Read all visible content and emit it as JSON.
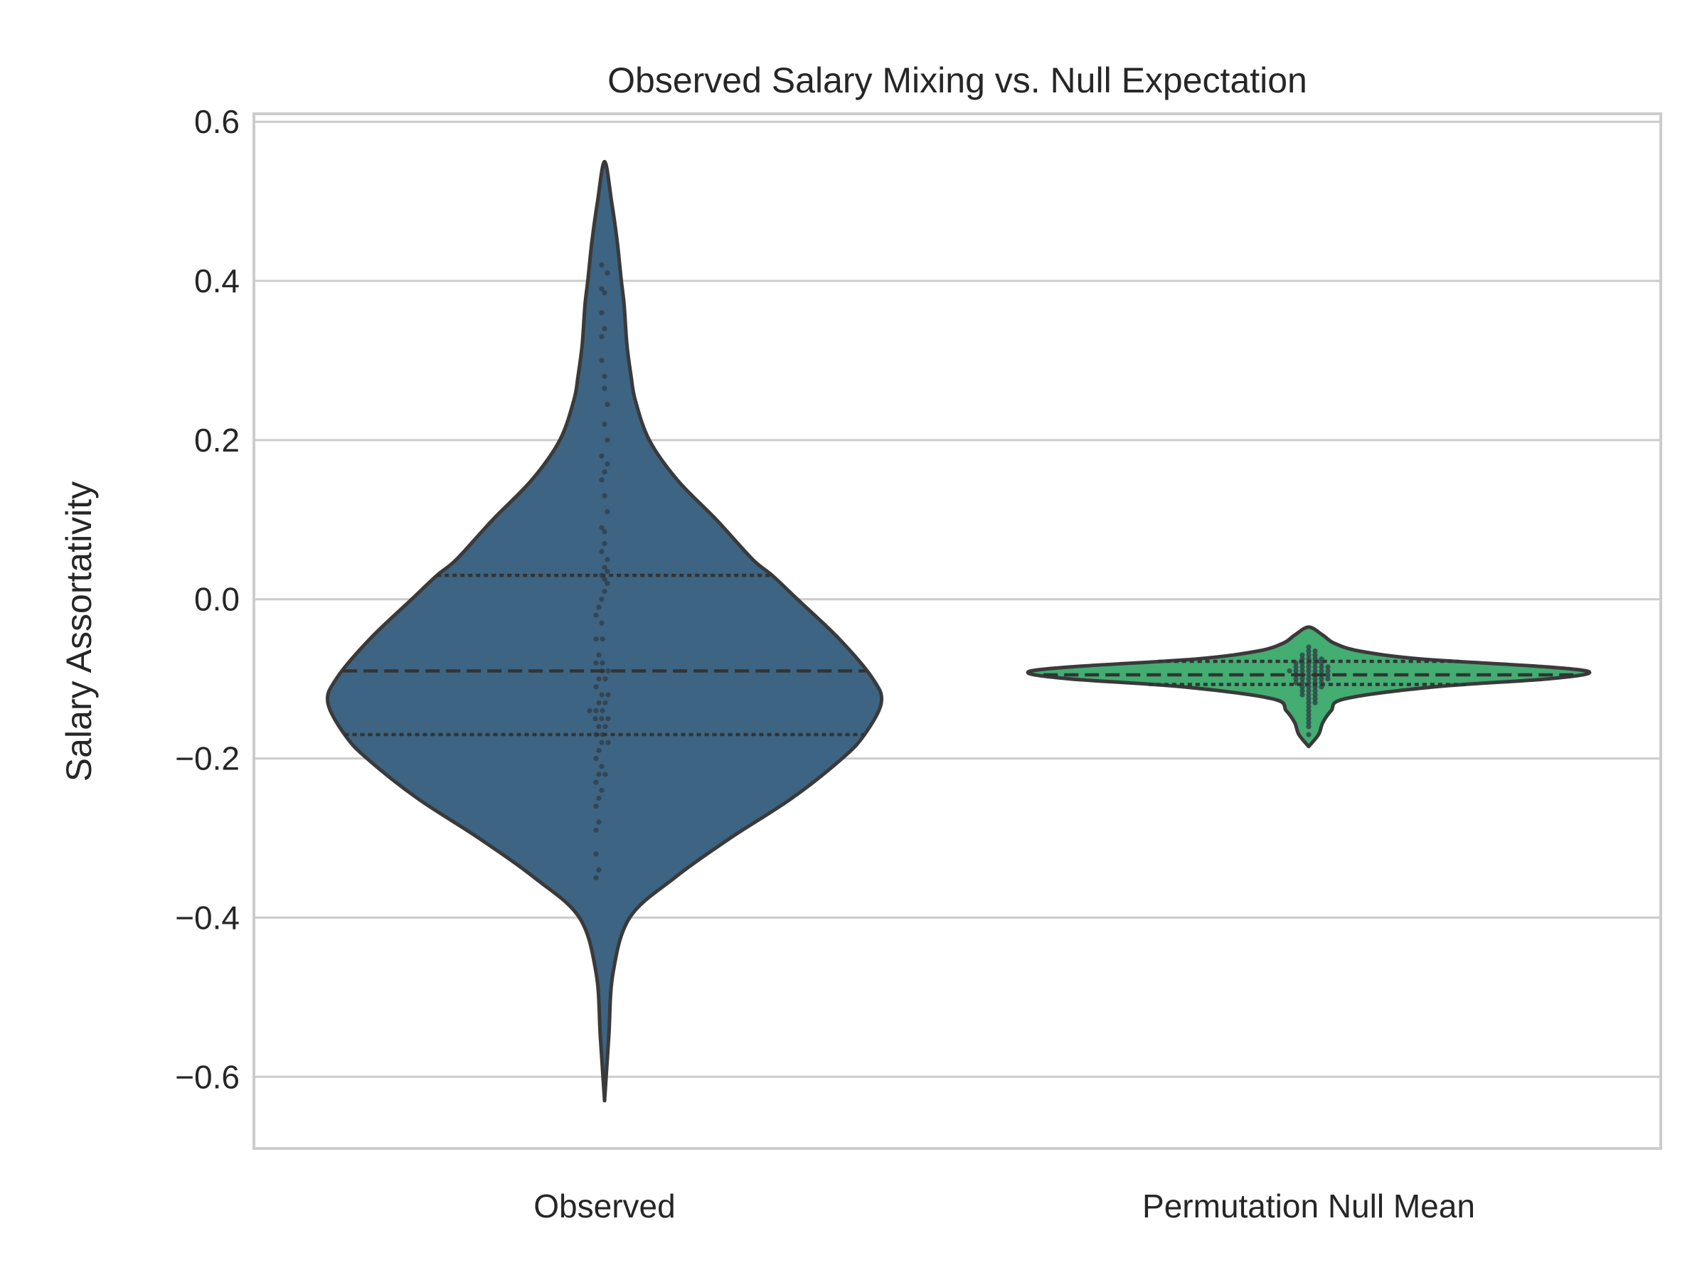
{
  "chart_data": {
    "type": "violin",
    "title": "Observed Salary Mixing vs. Null Expectation",
    "xlabel": "",
    "ylabel": "Salary Assortativity",
    "ylim": [
      -0.69,
      0.61
    ],
    "yticks": [
      0.6,
      0.4,
      0.2,
      0.0,
      -0.2,
      -0.4,
      -0.6
    ],
    "ytick_labels": [
      "0.6",
      "0.4",
      "0.2",
      "0.0",
      "−0.2",
      "−0.4",
      "−0.6"
    ],
    "grid": true,
    "categories": [
      "Observed",
      "Permutation Null Mean"
    ],
    "colors": [
      "#3d6482",
      "#43ad72"
    ],
    "series": [
      {
        "category": "Observed",
        "min": -0.63,
        "max": 0.55,
        "q1": -0.17,
        "median": -0.09,
        "q3": 0.03,
        "density": [
          [
            -0.63,
            0.0
          ],
          [
            -0.55,
            0.015
          ],
          [
            -0.47,
            0.03
          ],
          [
            -0.4,
            0.09
          ],
          [
            -0.35,
            0.25
          ],
          [
            -0.3,
            0.45
          ],
          [
            -0.25,
            0.67
          ],
          [
            -0.2,
            0.85
          ],
          [
            -0.17,
            0.93
          ],
          [
            -0.13,
            0.99
          ],
          [
            -0.1,
            0.96
          ],
          [
            -0.05,
            0.84
          ],
          [
            0.0,
            0.69
          ],
          [
            0.03,
            0.6
          ],
          [
            0.05,
            0.53
          ],
          [
            0.1,
            0.4
          ],
          [
            0.15,
            0.26
          ],
          [
            0.2,
            0.16
          ],
          [
            0.25,
            0.11
          ],
          [
            0.28,
            0.095
          ],
          [
            0.32,
            0.08
          ],
          [
            0.37,
            0.07
          ],
          [
            0.4,
            0.06
          ],
          [
            0.45,
            0.045
          ],
          [
            0.5,
            0.025
          ],
          [
            0.55,
            0.0
          ]
        ],
        "points": [
          0.42,
          0.41,
          0.39,
          0.385,
          0.36,
          0.34,
          0.33,
          0.3,
          0.28,
          0.265,
          0.245,
          0.22,
          0.2,
          0.18,
          0.17,
          0.16,
          0.15,
          0.13,
          0.11,
          0.09,
          0.085,
          0.07,
          0.06,
          0.05,
          0.04,
          0.035,
          0.03,
          0.025,
          0.02,
          0.01,
          0.0,
          -0.01,
          -0.02,
          -0.03,
          -0.05,
          -0.05,
          -0.07,
          -0.08,
          -0.08,
          -0.09,
          -0.09,
          -0.1,
          -0.1,
          -0.11,
          -0.12,
          -0.12,
          -0.13,
          -0.13,
          -0.14,
          -0.14,
          -0.14,
          -0.15,
          -0.15,
          -0.15,
          -0.16,
          -0.16,
          -0.17,
          -0.17,
          -0.18,
          -0.18,
          -0.19,
          -0.2,
          -0.21,
          -0.22,
          -0.22,
          -0.23,
          -0.24,
          -0.25,
          -0.26,
          -0.28,
          -0.29,
          -0.32,
          -0.34,
          -0.35
        ]
      },
      {
        "category": "Permutation Null Mean",
        "min": -0.185,
        "max": -0.035,
        "q1": -0.107,
        "median": -0.095,
        "q3": -0.078,
        "density": [
          [
            -0.185,
            0.0
          ],
          [
            -0.17,
            0.035
          ],
          [
            -0.155,
            0.05
          ],
          [
            -0.14,
            0.08
          ],
          [
            -0.125,
            0.13
          ],
          [
            -0.11,
            0.45
          ],
          [
            -0.1,
            0.85
          ],
          [
            -0.092,
            1.0
          ],
          [
            -0.085,
            0.85
          ],
          [
            -0.075,
            0.4
          ],
          [
            -0.065,
            0.18
          ],
          [
            -0.055,
            0.09
          ],
          [
            -0.045,
            0.05
          ],
          [
            -0.035,
            0.0
          ]
        ],
        "points": [
          -0.06,
          -0.065,
          -0.065,
          -0.07,
          -0.07,
          -0.07,
          -0.075,
          -0.075,
          -0.075,
          -0.075,
          -0.08,
          -0.08,
          -0.08,
          -0.08,
          -0.08,
          -0.085,
          -0.085,
          -0.085,
          -0.085,
          -0.085,
          -0.085,
          -0.09,
          -0.09,
          -0.09,
          -0.09,
          -0.09,
          -0.09,
          -0.09,
          -0.095,
          -0.095,
          -0.095,
          -0.095,
          -0.095,
          -0.095,
          -0.1,
          -0.1,
          -0.1,
          -0.1,
          -0.1,
          -0.1,
          -0.105,
          -0.105,
          -0.105,
          -0.105,
          -0.105,
          -0.11,
          -0.11,
          -0.11,
          -0.11,
          -0.115,
          -0.115,
          -0.115,
          -0.12,
          -0.12,
          -0.12,
          -0.125,
          -0.125,
          -0.13,
          -0.13,
          -0.135,
          -0.14,
          -0.145,
          -0.15,
          -0.155,
          -0.16,
          -0.17
        ]
      }
    ]
  }
}
